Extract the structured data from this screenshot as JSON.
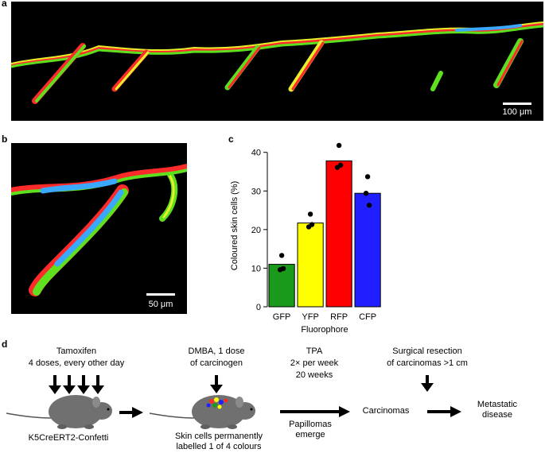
{
  "panels": {
    "a": {
      "letter": "a",
      "scale_label": "100 μm"
    },
    "b": {
      "letter": "b",
      "scale_label": "50 μm"
    },
    "c": {
      "letter": "c"
    },
    "d": {
      "letter": "d"
    }
  },
  "chart_data": {
    "type": "bar",
    "categories": [
      "GFP",
      "YFP",
      "RFP",
      "CFP"
    ],
    "values": [
      11,
      21.7,
      37.8,
      29.4
    ],
    "points": [
      [
        13.3,
        9.6,
        9.9
      ],
      [
        24,
        20.7,
        21.3
      ],
      [
        41.8,
        36.1,
        36.7
      ],
      [
        33.7,
        29.4,
        26.3
      ]
    ],
    "colors": [
      "#1a9a1a",
      "#ffff00",
      "#ff0000",
      "#1f1fff"
    ],
    "xlabel": "Fluorophore",
    "ylabel": "Coloured skin cells (%)",
    "ylim": [
      0,
      42
    ],
    "yticks": [
      0,
      10,
      20,
      30,
      40
    ],
    "grid": false
  },
  "diagram": {
    "tamoxifen": "Tamoxifen",
    "tamoxifen_doses": "4 doses, every other day",
    "mouse1_label": "K5CreERT2-Confetti",
    "dmba_line1": "DMBA, 1 dose",
    "dmba_line2": "of carcinogen",
    "mouse2_label_line1": "Skin cells permanently",
    "mouse2_label_line2": "labelled 1 of 4 colours",
    "tpa": "TPA",
    "tpa_freq": "2× per week",
    "tpa_duration": "20 weeks",
    "papillomas_line1": "Papillomas",
    "papillomas_line2": "emerge",
    "carcinomas": "Carcinomas",
    "resection_line1": "Surgical resection",
    "resection_line2": "of carcinomas >1 cm",
    "metastatic_line1": "Metastatic",
    "metastatic_line2": "disease"
  }
}
